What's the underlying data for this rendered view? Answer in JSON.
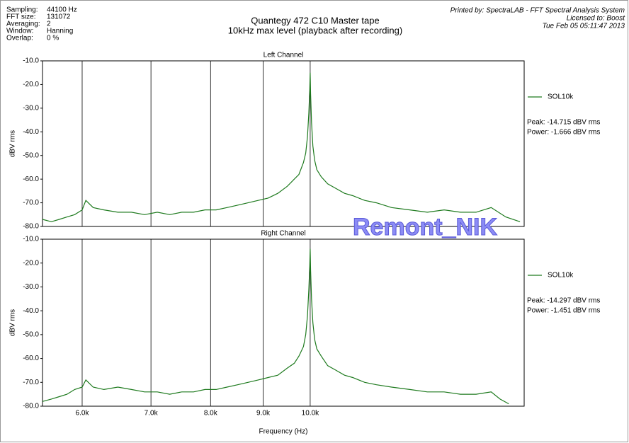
{
  "header": {
    "info": [
      [
        "Sampling:",
        "44100 Hz"
      ],
      [
        "FFT size:",
        "131072"
      ],
      [
        "Averaging:",
        "2"
      ],
      [
        "Window:",
        "Hanning"
      ],
      [
        "Overlap:",
        "0 %"
      ]
    ],
    "title": "Quantegy 472 C10 Master tape",
    "subtitle": "10kHz max level (playback after recording)",
    "printed_by": [
      "Printed by: SpectraLAB - FFT Spectral Analysis System",
      "Licensed to: Boost",
      "Tue Feb 05 05:11:47 2013"
    ],
    "watermark": "Remont_NIK"
  },
  "chart_data": [
    {
      "type": "line",
      "title": "Left Channel",
      "ylabel": "dBV rms",
      "log_x": true,
      "grid": true,
      "xlim": [
        5490,
        16150
      ],
      "ylim": [
        -80,
        -10
      ],
      "yticks": [
        {
          "value": -10,
          "label": "-10.0"
        },
        {
          "value": -20,
          "label": "-20.0"
        },
        {
          "value": -30,
          "label": "-30.0"
        },
        {
          "value": -40,
          "label": "-40.0"
        },
        {
          "value": -50,
          "label": "-50.0"
        },
        {
          "value": -60,
          "label": "-60.0"
        },
        {
          "value": -70,
          "label": "-70.0"
        },
        {
          "value": -80,
          "label": "-80.0"
        }
      ],
      "x": [
        5490,
        5600,
        5700,
        5800,
        5900,
        6000,
        6050,
        6150,
        6300,
        6500,
        6700,
        6900,
        7100,
        7300,
        7500,
        7700,
        7900,
        8100,
        8300,
        8500,
        8700,
        8900,
        9100,
        9300,
        9500,
        9650,
        9750,
        9850,
        9900,
        9940,
        9970,
        9990,
        10000,
        10010,
        10030,
        10060,
        10100,
        10150,
        10250,
        10400,
        10600,
        10800,
        11000,
        11300,
        11600,
        12000,
        12500,
        13000,
        13500,
        14000,
        14500,
        15000,
        15500,
        16000
      ],
      "series": [
        {
          "name": "SOL10k",
          "color": "#1e7a1e",
          "values": [
            -77,
            -78,
            -77,
            -76,
            -75,
            -73,
            -69,
            -72,
            -73,
            -74,
            -74,
            -75,
            -74,
            -75,
            -74,
            -74,
            -73,
            -73,
            -72,
            -71,
            -70,
            -69,
            -68,
            -66,
            -63,
            -60,
            -58,
            -53,
            -49,
            -42,
            -32,
            -22,
            -15,
            -24,
            -36,
            -46,
            -52,
            -56,
            -59,
            -62,
            -64,
            -66,
            -67,
            -69,
            -70,
            -72,
            -73,
            -74,
            -73,
            -74,
            -74,
            -72,
            -76,
            -78
          ]
        }
      ],
      "annotations": [
        "Peak: -14.715 dBV rms",
        "Power: -1.666 dBV rms"
      ]
    },
    {
      "type": "line",
      "title": "Right Channel",
      "ylabel": "dBV rms",
      "xlabel": "Frequency (Hz)",
      "log_x": true,
      "grid": true,
      "xlim": [
        5490,
        16150
      ],
      "ylim": [
        -80,
        -10
      ],
      "xticks": [
        {
          "value": 6000,
          "label": "6.0k"
        },
        {
          "value": 7000,
          "label": "7.0k"
        },
        {
          "value": 8000,
          "label": "8.0k"
        },
        {
          "value": 9000,
          "label": "9.0k"
        },
        {
          "value": 10000,
          "label": "10.0k"
        }
      ],
      "yticks": [
        {
          "value": -10,
          "label": "-10.0"
        },
        {
          "value": -20,
          "label": "-20.0"
        },
        {
          "value": -30,
          "label": "-30.0"
        },
        {
          "value": -40,
          "label": "-40.0"
        },
        {
          "value": -50,
          "label": "-50.0"
        },
        {
          "value": -60,
          "label": "-60.0"
        },
        {
          "value": -70,
          "label": "-70.0"
        },
        {
          "value": -80,
          "label": "-80.0"
        }
      ],
      "x": [
        5490,
        5600,
        5700,
        5800,
        5900,
        6000,
        6050,
        6150,
        6300,
        6500,
        6700,
        6900,
        7100,
        7300,
        7500,
        7700,
        7900,
        8100,
        8300,
        8500,
        8700,
        8900,
        9100,
        9300,
        9500,
        9650,
        9750,
        9850,
        9900,
        9940,
        9970,
        9990,
        10000,
        10010,
        10030,
        10060,
        10100,
        10150,
        10250,
        10400,
        10600,
        10800,
        11000,
        11300,
        11600,
        12000,
        12500,
        13000,
        13500,
        14000,
        14500,
        15000,
        15300,
        15600
      ],
      "series": [
        {
          "name": "SOL10k",
          "color": "#1e7a1e",
          "values": [
            -78,
            -77,
            -76,
            -75,
            -73,
            -72,
            -69,
            -72,
            -73,
            -72,
            -73,
            -74,
            -74,
            -75,
            -74,
            -74,
            -73,
            -73,
            -72,
            -71,
            -70,
            -69,
            -68,
            -67,
            -64,
            -62,
            -59,
            -55,
            -50,
            -42,
            -31,
            -21,
            -14,
            -23,
            -35,
            -45,
            -52,
            -56,
            -59,
            -63,
            -65,
            -67,
            -68,
            -70,
            -71,
            -72,
            -73,
            -74,
            -74,
            -75,
            -75,
            -74,
            -77,
            -79
          ]
        }
      ],
      "annotations": [
        "Peak: -14.297 dBV rms",
        "Power: -1.451 dBV rms"
      ]
    }
  ]
}
